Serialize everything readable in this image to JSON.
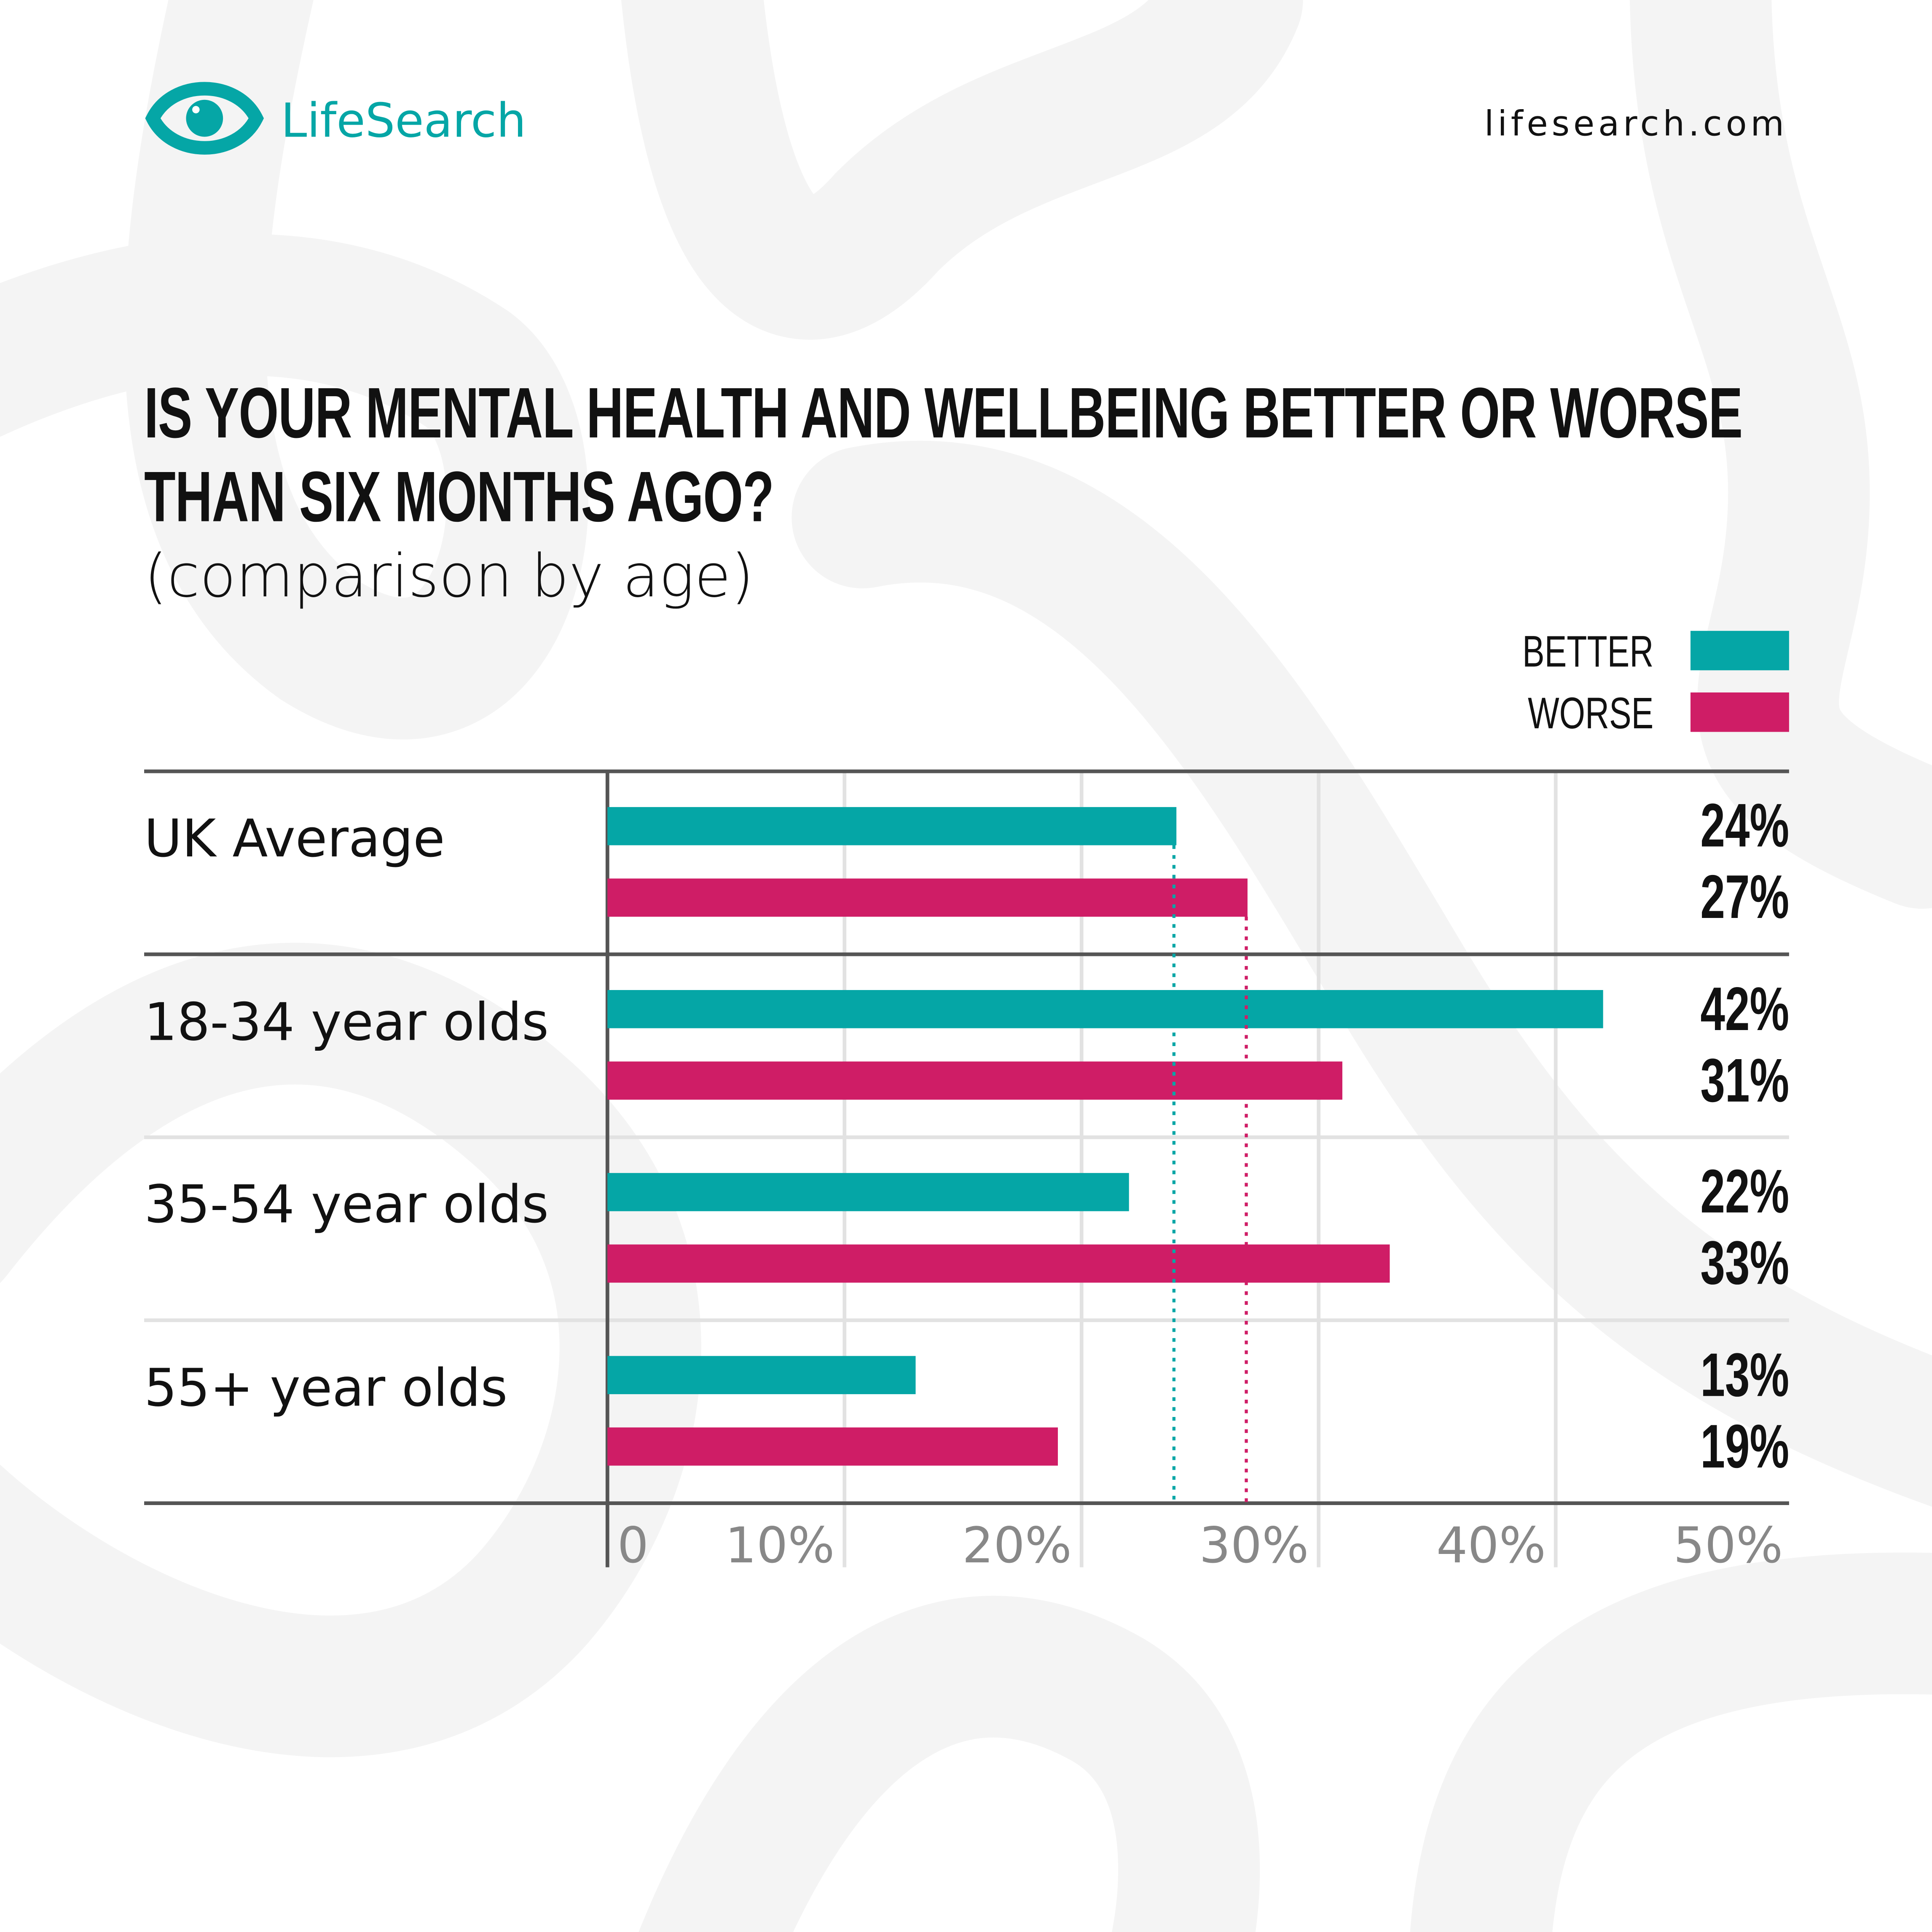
{
  "header": {
    "brand": "LifeSearch",
    "url": "lifesearch.com"
  },
  "colors": {
    "better": "#05a6a6",
    "worse": "#cf1d66"
  },
  "chart_data": {
    "type": "bar",
    "orientation": "horizontal",
    "title": "IS YOUR MENTAL HEALTH AND WELLBEING BETTER OR WORSE THAN SIX MONTHS AGO?",
    "subtitle": "(comparison by age)",
    "categories": [
      "UK Average",
      "18-34 year olds",
      "35-54 year olds",
      "55+ year olds"
    ],
    "series": [
      {
        "name": "BETTER",
        "values": [
          24,
          42,
          22,
          13
        ],
        "labels": [
          "24%",
          "42%",
          "22%",
          "13%"
        ]
      },
      {
        "name": "WORSE",
        "values": [
          27,
          31,
          33,
          19
        ],
        "labels": [
          "27%",
          "31%",
          "33%",
          "19%"
        ]
      }
    ],
    "xlim": [
      0,
      50
    ],
    "xticks": [
      "0",
      "10%",
      "20%",
      "30%",
      "40%",
      "50%"
    ],
    "reference_lines": {
      "better_average": 24,
      "worse_average": 27
    },
    "legend": "top-right",
    "grid": true
  }
}
